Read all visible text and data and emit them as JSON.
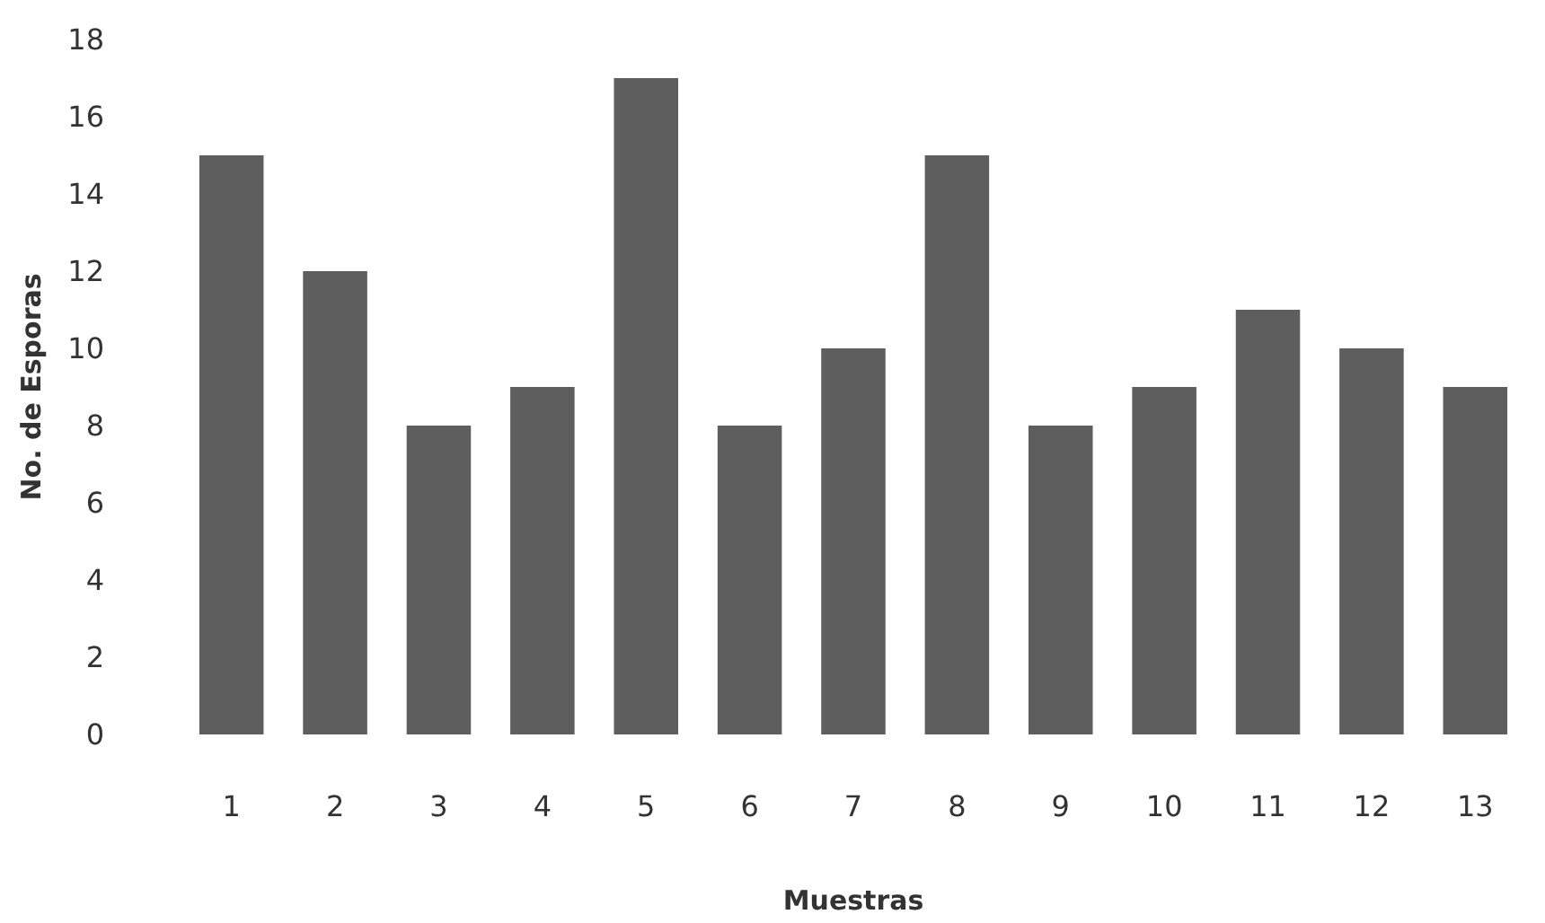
{
  "chart_data": {
    "type": "bar",
    "xlabel": "Muestras",
    "ylabel": "No. de Esporas",
    "categories": [
      "1",
      "2",
      "3",
      "4",
      "5",
      "6",
      "7",
      "8",
      "9",
      "10",
      "11",
      "12",
      "13"
    ],
    "values": [
      15,
      12,
      8,
      9,
      17,
      8,
      10,
      15,
      8,
      9,
      11,
      10,
      9
    ],
    "color": "#5e5e5e",
    "ylim": [
      0,
      18
    ],
    "yticks": [
      0,
      2,
      4,
      6,
      8,
      10,
      12,
      14,
      16,
      18
    ],
    "grid": false
  }
}
